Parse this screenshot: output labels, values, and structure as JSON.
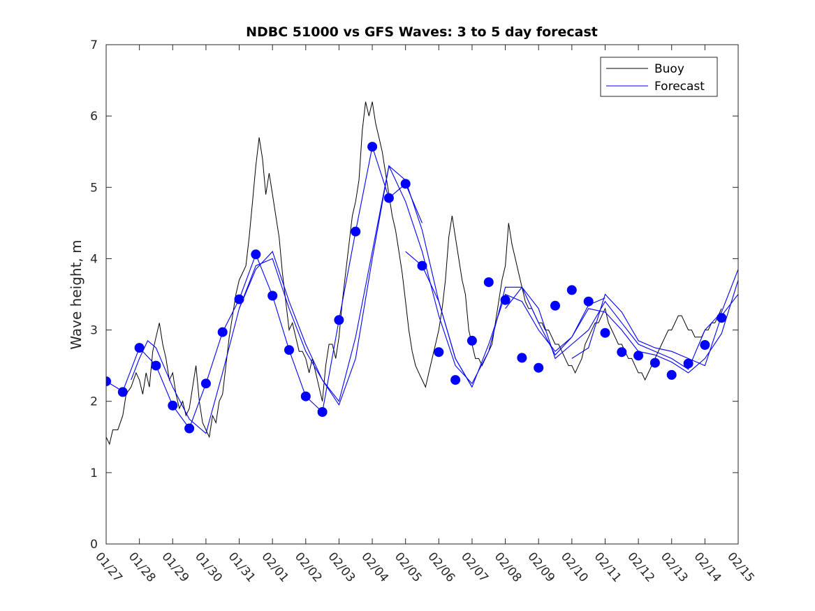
{
  "chart_data": {
    "type": "line",
    "title": "NDBC 51000 vs GFS Waves: 3 to 5 day forecast",
    "xlabel": "",
    "ylabel": "Wave height, m",
    "xlim": [
      0,
      19
    ],
    "ylim": [
      0,
      7
    ],
    "x_tick_labels": [
      "01/27",
      "01/28",
      "01/29",
      "01/30",
      "01/31",
      "02/01",
      "02/02",
      "02/03",
      "02/04",
      "02/05",
      "02/06",
      "02/07",
      "02/08",
      "02/09",
      "02/10",
      "02/11",
      "02/12",
      "02/13",
      "02/14",
      "02/15"
    ],
    "y_ticks": [
      0,
      1,
      2,
      3,
      4,
      5,
      6,
      7
    ],
    "legend": {
      "placement": "top-right",
      "entries": [
        "Buoy",
        "Forecast"
      ]
    },
    "colors": {
      "buoy": "#000000",
      "forecast": "#0000ff"
    },
    "series": [
      {
        "name": "Buoy",
        "x": [
          0.0,
          0.1,
          0.2,
          0.35,
          0.5,
          0.6,
          0.75,
          0.9,
          1.0,
          1.1,
          1.2,
          1.3,
          1.4,
          1.5,
          1.6,
          1.7,
          1.8,
          1.9,
          2.0,
          2.1,
          2.2,
          2.3,
          2.4,
          2.5,
          2.6,
          2.7,
          2.8,
          2.9,
          3.0,
          3.1,
          3.2,
          3.3,
          3.4,
          3.5,
          3.6,
          3.7,
          3.8,
          3.9,
          4.0,
          4.1,
          4.2,
          4.3,
          4.4,
          4.5,
          4.6,
          4.7,
          4.8,
          4.9,
          5.0,
          5.1,
          5.2,
          5.3,
          5.4,
          5.5,
          5.6,
          5.7,
          5.8,
          5.9,
          6.0,
          6.1,
          6.2,
          6.3,
          6.4,
          6.5,
          6.6,
          6.7,
          6.8,
          6.9,
          7.0,
          7.1,
          7.2,
          7.3,
          7.4,
          7.5,
          7.6,
          7.7,
          7.8,
          7.9,
          8.0,
          8.1,
          8.2,
          8.3,
          8.4,
          8.5,
          8.6,
          8.7,
          8.8,
          8.9,
          9.0,
          9.1,
          9.2,
          9.3,
          9.4,
          9.5,
          9.6,
          9.7,
          9.8,
          9.9,
          10.0,
          10.1,
          10.2,
          10.3,
          10.4,
          10.5,
          10.6,
          10.7,
          10.8,
          10.9,
          11.0,
          11.1,
          11.2,
          11.3,
          11.4,
          11.5,
          11.6,
          11.7,
          11.8,
          11.9,
          12.0,
          12.1,
          12.2,
          12.3,
          12.4,
          12.5,
          12.6,
          12.7,
          12.8,
          12.9,
          13.0,
          13.1,
          13.2,
          13.3,
          13.4,
          13.5,
          13.6,
          13.7,
          13.8,
          13.9,
          14.0,
          14.1,
          14.2,
          14.3,
          14.4,
          14.5,
          14.6,
          14.7,
          14.8,
          14.9,
          15.0,
          15.1,
          15.2,
          15.3,
          15.4,
          15.5,
          15.6,
          15.7,
          15.8,
          15.9,
          16.0,
          16.1,
          16.2,
          16.3,
          16.4,
          16.5,
          16.6,
          16.7,
          16.8,
          16.9,
          17.0,
          17.1,
          17.2,
          17.3,
          17.4,
          17.5,
          17.6,
          17.7,
          17.8,
          17.9,
          18.0,
          18.1,
          18.2,
          18.3,
          18.4,
          18.5
        ],
        "values": [
          1.5,
          1.4,
          1.6,
          1.6,
          1.8,
          2.1,
          2.2,
          2.4,
          2.3,
          2.1,
          2.4,
          2.2,
          2.7,
          2.9,
          3.1,
          2.8,
          2.6,
          2.3,
          2.4,
          2.1,
          1.9,
          2.0,
          1.8,
          1.9,
          2.2,
          2.5,
          2.0,
          1.7,
          1.6,
          1.5,
          1.8,
          1.7,
          2.0,
          2.1,
          2.5,
          2.9,
          3.2,
          3.5,
          3.7,
          3.8,
          3.9,
          4.3,
          4.8,
          5.3,
          5.7,
          5.4,
          4.9,
          5.2,
          4.9,
          4.6,
          4.3,
          3.8,
          3.4,
          3.0,
          3.1,
          2.9,
          2.7,
          2.7,
          2.6,
          2.4,
          2.6,
          2.4,
          2.2,
          2.0,
          2.5,
          2.8,
          2.8,
          2.6,
          2.9,
          3.4,
          3.8,
          4.2,
          4.6,
          4.8,
          5.1,
          5.8,
          6.2,
          6.0,
          6.2,
          5.9,
          5.7,
          5.5,
          5.2,
          4.9,
          4.6,
          4.4,
          4.1,
          3.8,
          3.4,
          3.0,
          2.7,
          2.5,
          2.4,
          2.3,
          2.2,
          2.4,
          2.6,
          2.8,
          3.0,
          3.3,
          3.7,
          4.3,
          4.6,
          4.3,
          4.0,
          3.7,
          3.5,
          3.0,
          2.8,
          2.6,
          2.6,
          2.5,
          2.6,
          2.7,
          2.8,
          3.1,
          3.4,
          3.7,
          3.9,
          4.5,
          4.2,
          4.0,
          3.8,
          3.6,
          3.4,
          3.3,
          3.3,
          3.2,
          3.1,
          3.1,
          3.0,
          3.0,
          2.9,
          2.8,
          2.8,
          2.7,
          2.6,
          2.5,
          2.5,
          2.4,
          2.5,
          2.6,
          2.8,
          2.9,
          3.0,
          3.1,
          3.1,
          3.2,
          3.3,
          3.1,
          3.0,
          2.9,
          2.8,
          2.8,
          2.7,
          2.6,
          2.6,
          2.5,
          2.4,
          2.4,
          2.3,
          2.4,
          2.5,
          2.6,
          2.7,
          2.8,
          2.9,
          3.0,
          3.0,
          3.1,
          3.2,
          3.2,
          3.1,
          3.0,
          3.0,
          2.9,
          2.9,
          2.9,
          3.0,
          3.0,
          3.1,
          3.1,
          3.2,
          3.3
        ]
      },
      {
        "name": "Forecast run 1",
        "x": [
          0.0,
          0.5,
          1.0,
          1.5,
          2.0,
          2.5,
          3.0,
          3.5,
          4.0,
          4.5,
          5.0,
          5.5,
          6.0,
          6.5,
          7.0,
          7.5,
          8.0,
          8.5,
          9.0,
          9.5
        ],
        "values": [
          2.28,
          2.14,
          2.75,
          2.5,
          1.94,
          1.62,
          2.25,
          2.97,
          3.43,
          4.06,
          3.48,
          2.72,
          2.07,
          1.85,
          3.14,
          4.38,
          5.57,
          4.85,
          5.05,
          4.5
        ]
      },
      {
        "name": "Forecast run 2",
        "x": [
          0.75,
          1.0,
          1.25,
          1.5,
          2.0,
          2.5,
          3.0,
          3.5,
          4.0,
          4.5,
          5.0,
          5.5,
          6.0,
          6.5,
          7.0,
          7.5,
          8.0,
          8.5,
          9.0,
          9.5,
          10.0,
          10.5,
          11.0
        ],
        "values": [
          2.3,
          2.6,
          2.85,
          2.75,
          2.2,
          1.75,
          1.55,
          2.4,
          3.3,
          3.85,
          4.1,
          3.4,
          2.8,
          2.3,
          1.95,
          2.6,
          4.0,
          5.3,
          5.1,
          4.4,
          3.4,
          2.6,
          2.2
        ]
      },
      {
        "name": "Forecast run 3",
        "x": [
          4.0,
          4.5,
          5.0,
          5.5,
          6.0,
          6.5,
          7.0,
          7.5,
          8.0,
          8.5,
          9.0,
          9.5,
          10.0,
          10.5,
          11.0,
          11.5,
          12.0,
          12.5,
          13.0,
          13.5,
          14.0,
          14.5,
          15.0
        ],
        "values": [
          3.3,
          3.9,
          4.0,
          3.3,
          2.7,
          2.3,
          2.0,
          2.9,
          4.1,
          5.3,
          4.8,
          4.1,
          3.2,
          2.5,
          2.25,
          2.7,
          3.6,
          3.6,
          3.1,
          2.65,
          2.9,
          3.35,
          3.45
        ]
      },
      {
        "name": "Forecast run 4",
        "x": [
          9.0,
          9.5,
          10.0,
          10.5,
          11.0,
          11.5,
          12.0,
          12.5,
          13.0,
          13.5,
          14.0,
          14.5,
          15.0,
          15.5,
          16.0,
          16.5,
          17.0,
          17.5,
          18.0,
          18.5,
          19.0
        ],
        "values": [
          4.1,
          3.9,
          3.4,
          2.6,
          2.2,
          2.8,
          3.5,
          3.4,
          3.0,
          2.7,
          2.9,
          3.3,
          3.25,
          3.0,
          2.7,
          2.65,
          2.55,
          2.4,
          2.6,
          2.95,
          3.7
        ]
      },
      {
        "name": "Forecast run 5",
        "x": [
          12.0,
          12.5,
          13.0,
          13.5,
          14.0,
          14.5,
          15.0,
          15.5,
          16.0,
          16.5,
          17.0,
          17.5,
          18.0,
          18.5,
          19.0
        ],
        "values": [
          3.3,
          3.6,
          3.3,
          2.6,
          2.8,
          3.0,
          3.4,
          3.1,
          2.8,
          2.7,
          2.6,
          2.45,
          3.0,
          3.25,
          3.85
        ]
      },
      {
        "name": "Forecast run 6",
        "x": [
          14.0,
          14.5,
          15.0,
          15.5,
          16.0,
          16.5,
          17.0,
          17.5,
          18.0,
          18.5,
          19.0
        ],
        "values": [
          2.6,
          2.75,
          3.5,
          3.25,
          2.85,
          2.75,
          2.7,
          2.6,
          2.5,
          3.2,
          3.5
        ]
      }
    ],
    "markers": {
      "name": "Forecast points",
      "x": [
        0.0,
        0.5,
        1.0,
        1.5,
        2.0,
        2.5,
        3.0,
        3.5,
        4.0,
        4.5,
        5.0,
        5.5,
        6.0,
        6.5,
        7.0,
        7.5,
        8.0,
        8.5,
        9.0,
        9.5,
        10.0,
        10.5,
        11.0,
        11.5,
        12.0,
        12.5,
        13.0,
        13.5,
        14.0,
        14.5,
        15.0,
        15.5,
        16.0,
        16.5,
        17.0,
        17.5,
        18.0,
        18.5
      ],
      "values": [
        2.28,
        2.13,
        2.75,
        2.5,
        1.94,
        1.62,
        2.25,
        2.97,
        3.43,
        4.06,
        3.48,
        2.72,
        2.07,
        1.85,
        3.14,
        4.38,
        5.57,
        4.85,
        5.05,
        3.9,
        2.69,
        2.3,
        2.85,
        3.67,
        3.42,
        2.61,
        2.47,
        3.34,
        3.56,
        3.4,
        2.96,
        2.69,
        2.64,
        2.54,
        2.37,
        2.53,
        2.79,
        3.17
      ]
    }
  }
}
